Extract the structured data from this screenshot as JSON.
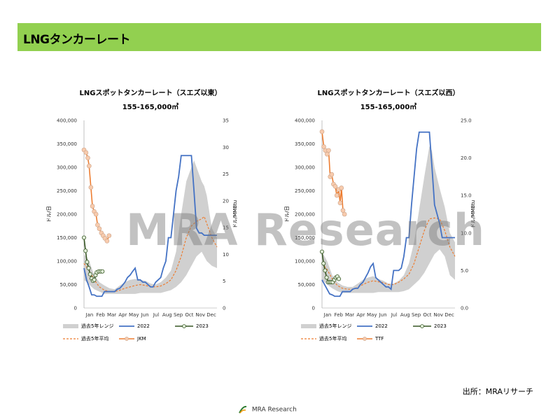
{
  "header": {
    "title": "LNGタンカーレート"
  },
  "watermark": "MRA Research",
  "source": "出所：MRAリサーチ",
  "footer": {
    "logo_text": "MRA Research"
  },
  "colors": {
    "header_bg": "#92d050",
    "range": "#d0d0d0",
    "y2022": "#4472c4",
    "y2023": "#375623",
    "avg": "#ed7d31",
    "price": "#ed7d31"
  },
  "chart_data": [
    {
      "type": "line",
      "title": "LNGスポットタンカーレート（スエズ以東）",
      "subtitle": "155-165,000㎥",
      "ylabel": "ドル/日",
      "y2label": "ドル/MMBtu",
      "ylim": [
        0,
        400000
      ],
      "yticks": [
        "0",
        "50,000",
        "100,000",
        "150,000",
        "200,000",
        "250,000",
        "300,000",
        "350,000",
        "400,000"
      ],
      "y2lim": [
        0,
        35
      ],
      "y2ticks": [
        "0",
        "5",
        "10",
        "15",
        "20",
        "25",
        "30",
        "35"
      ],
      "xlim": [
        0,
        52
      ],
      "month_ticks": [
        "Jan",
        "Feb",
        "Mar",
        "Apr",
        "May",
        "Jun",
        "Jul",
        "Aug",
        "Sep",
        "Oct",
        "Nov",
        "Dec"
      ],
      "legend": [
        "過去5年レンジ",
        "2022",
        "2023",
        "過去5年平均",
        "JKM"
      ],
      "range_min": [
        [
          0,
          60000
        ],
        [
          2,
          50000
        ],
        [
          4,
          40000
        ],
        [
          6,
          35000
        ],
        [
          8,
          30000
        ],
        [
          10,
          30000
        ],
        [
          12,
          30000
        ],
        [
          14,
          30000
        ],
        [
          16,
          30000
        ],
        [
          18,
          30000
        ],
        [
          20,
          30000
        ],
        [
          22,
          32000
        ],
        [
          24,
          32000
        ],
        [
          26,
          32000
        ],
        [
          28,
          32000
        ],
        [
          30,
          32000
        ],
        [
          32,
          35000
        ],
        [
          34,
          38000
        ],
        [
          36,
          45000
        ],
        [
          38,
          55000
        ],
        [
          40,
          70000
        ],
        [
          42,
          90000
        ],
        [
          44,
          110000
        ],
        [
          46,
          120000
        ],
        [
          48,
          100000
        ],
        [
          50,
          90000
        ],
        [
          52,
          85000
        ]
      ],
      "range_max": [
        [
          0,
          115000
        ],
        [
          2,
          100000
        ],
        [
          4,
          70000
        ],
        [
          6,
          55000
        ],
        [
          8,
          48000
        ],
        [
          10,
          42000
        ],
        [
          12,
          40000
        ],
        [
          14,
          48000
        ],
        [
          16,
          55000
        ],
        [
          18,
          60000
        ],
        [
          20,
          62000
        ],
        [
          22,
          60000
        ],
        [
          24,
          58000
        ],
        [
          26,
          52000
        ],
        [
          28,
          50000
        ],
        [
          30,
          55000
        ],
        [
          32,
          65000
        ],
        [
          34,
          80000
        ],
        [
          36,
          120000
        ],
        [
          38,
          200000
        ],
        [
          40,
          270000
        ],
        [
          42,
          300000
        ],
        [
          43,
          315000
        ],
        [
          44,
          300000
        ],
        [
          46,
          270000
        ],
        [
          47,
          260000
        ],
        [
          48,
          240000
        ],
        [
          50,
          170000
        ],
        [
          52,
          150000
        ]
      ],
      "avg": [
        [
          0,
          95000
        ],
        [
          2,
          80000
        ],
        [
          4,
          60000
        ],
        [
          6,
          45000
        ],
        [
          8,
          38000
        ],
        [
          10,
          35000
        ],
        [
          12,
          35000
        ],
        [
          14,
          38000
        ],
        [
          16,
          42000
        ],
        [
          18,
          45000
        ],
        [
          20,
          48000
        ],
        [
          22,
          50000
        ],
        [
          24,
          48000
        ],
        [
          26,
          46000
        ],
        [
          28,
          45000
        ],
        [
          30,
          47000
        ],
        [
          32,
          52000
        ],
        [
          34,
          60000
        ],
        [
          36,
          80000
        ],
        [
          38,
          110000
        ],
        [
          40,
          150000
        ],
        [
          42,
          175000
        ],
        [
          44,
          185000
        ],
        [
          46,
          190000
        ],
        [
          47,
          195000
        ],
        [
          48,
          180000
        ],
        [
          50,
          150000
        ],
        [
          52,
          130000
        ]
      ],
      "s2022": [
        [
          0,
          85000
        ],
        [
          1,
          60000
        ],
        [
          2,
          45000
        ],
        [
          3,
          28000
        ],
        [
          4,
          28000
        ],
        [
          5,
          25000
        ],
        [
          6,
          25000
        ],
        [
          7,
          25000
        ],
        [
          8,
          35000
        ],
        [
          9,
          35000
        ],
        [
          10,
          35000
        ],
        [
          11,
          35000
        ],
        [
          12,
          35000
        ],
        [
          13,
          40000
        ],
        [
          14,
          42000
        ],
        [
          15,
          48000
        ],
        [
          16,
          55000
        ],
        [
          17,
          65000
        ],
        [
          18,
          70000
        ],
        [
          19,
          78000
        ],
        [
          20,
          85000
        ],
        [
          21,
          60000
        ],
        [
          22,
          60000
        ],
        [
          23,
          55000
        ],
        [
          24,
          55000
        ],
        [
          25,
          50000
        ],
        [
          26,
          45000
        ],
        [
          27,
          45000
        ],
        [
          28,
          55000
        ],
        [
          29,
          60000
        ],
        [
          30,
          65000
        ],
        [
          31,
          85000
        ],
        [
          32,
          100000
        ],
        [
          33,
          150000
        ],
        [
          34,
          150000
        ],
        [
          35,
          200000
        ],
        [
          36,
          250000
        ],
        [
          37,
          280000
        ],
        [
          38,
          325000
        ],
        [
          39,
          325000
        ],
        [
          40,
          325000
        ],
        [
          41,
          325000
        ],
        [
          42,
          325000
        ],
        [
          43,
          250000
        ],
        [
          44,
          170000
        ],
        [
          45,
          160000
        ],
        [
          46,
          160000
        ],
        [
          47,
          155000
        ],
        [
          48,
          155000
        ],
        [
          49,
          155000
        ],
        [
          50,
          155000
        ],
        [
          51,
          155000
        ],
        [
          52,
          155000
        ]
      ],
      "s2023": [
        [
          0,
          150000
        ],
        [
          0.6,
          122000
        ],
        [
          1.2,
          98000
        ],
        [
          1.8,
          85000
        ],
        [
          2.4,
          72000
        ],
        [
          3,
          63000
        ],
        [
          3.5,
          58000
        ],
        [
          4,
          60000
        ],
        [
          4.5,
          70000
        ],
        [
          5,
          76000
        ],
        [
          5.8,
          78000
        ],
        [
          6.5,
          78000
        ],
        [
          7.2,
          78000
        ]
      ],
      "price": [
        [
          0,
          29.5
        ],
        [
          0.8,
          29
        ],
        [
          1.5,
          28
        ],
        [
          2,
          26.5
        ],
        [
          2.7,
          22.5
        ],
        [
          3.3,
          19
        ],
        [
          4,
          18
        ],
        [
          4.7,
          17.5
        ],
        [
          5.3,
          15.5
        ],
        [
          6,
          14.8
        ],
        [
          6.8,
          14
        ],
        [
          7.5,
          13.5
        ],
        [
          8.2,
          13
        ],
        [
          9,
          12.5
        ],
        [
          9.8,
          13.5
        ]
      ]
    },
    {
      "type": "line",
      "title": "LNGスポットタンカーレート（スエズ以西）",
      "subtitle": "155-165,000㎥",
      "ylabel": "ドル/日",
      "y2label": "ドル/MMBtu",
      "ylim": [
        0,
        400000
      ],
      "yticks": [
        "0",
        "50,000",
        "100,000",
        "150,000",
        "200,000",
        "250,000",
        "300,000",
        "350,000",
        "400,000"
      ],
      "y2lim": [
        0,
        25
      ],
      "y2ticks": [
        "0.0",
        "5.0",
        "10.0",
        "15.0",
        "20.0",
        "25.0"
      ],
      "xlim": [
        0,
        52
      ],
      "month_ticks": [
        "Jan",
        "Feb",
        "Mar",
        "Apr",
        "May",
        "Jun",
        "Jul",
        "Aug",
        "Sep",
        "Oct",
        "Nov",
        "Dec"
      ],
      "legend": [
        "過去5年レンジ",
        "2022",
        "2023",
        "過去5年平均",
        "TTF"
      ],
      "range_min": [
        [
          0,
          60000
        ],
        [
          2,
          50000
        ],
        [
          4,
          42000
        ],
        [
          6,
          36000
        ],
        [
          8,
          32000
        ],
        [
          10,
          32000
        ],
        [
          12,
          32000
        ],
        [
          14,
          32000
        ],
        [
          16,
          32000
        ],
        [
          18,
          32000
        ],
        [
          20,
          32000
        ],
        [
          22,
          34000
        ],
        [
          24,
          34000
        ],
        [
          26,
          34000
        ],
        [
          28,
          34000
        ],
        [
          30,
          34000
        ],
        [
          32,
          36000
        ],
        [
          34,
          40000
        ],
        [
          36,
          50000
        ],
        [
          38,
          60000
        ],
        [
          40,
          75000
        ],
        [
          42,
          95000
        ],
        [
          44,
          115000
        ],
        [
          46,
          125000
        ],
        [
          48,
          110000
        ],
        [
          50,
          70000
        ],
        [
          52,
          60000
        ]
      ],
      "range_max": [
        [
          0,
          120000
        ],
        [
          2,
          100000
        ],
        [
          4,
          70000
        ],
        [
          6,
          55000
        ],
        [
          8,
          48000
        ],
        [
          10,
          45000
        ],
        [
          12,
          45000
        ],
        [
          14,
          52000
        ],
        [
          16,
          60000
        ],
        [
          18,
          65000
        ],
        [
          20,
          68000
        ],
        [
          22,
          62000
        ],
        [
          24,
          58000
        ],
        [
          26,
          52000
        ],
        [
          28,
          52000
        ],
        [
          30,
          58000
        ],
        [
          32,
          70000
        ],
        [
          34,
          95000
        ],
        [
          36,
          140000
        ],
        [
          38,
          210000
        ],
        [
          40,
          280000
        ],
        [
          42,
          345000
        ],
        [
          43,
          335000
        ],
        [
          44,
          300000
        ],
        [
          46,
          255000
        ],
        [
          48,
          215000
        ],
        [
          50,
          160000
        ],
        [
          52,
          140000
        ]
      ],
      "avg": [
        [
          0,
          95000
        ],
        [
          2,
          82000
        ],
        [
          4,
          62000
        ],
        [
          6,
          48000
        ],
        [
          8,
          42000
        ],
        [
          10,
          40000
        ],
        [
          12,
          40000
        ],
        [
          14,
          44000
        ],
        [
          16,
          50000
        ],
        [
          18,
          55000
        ],
        [
          20,
          58000
        ],
        [
          22,
          56000
        ],
        [
          24,
          54000
        ],
        [
          26,
          50000
        ],
        [
          28,
          50000
        ],
        [
          30,
          55000
        ],
        [
          32,
          62000
        ],
        [
          34,
          72000
        ],
        [
          36,
          95000
        ],
        [
          38,
          130000
        ],
        [
          40,
          165000
        ],
        [
          42,
          190000
        ],
        [
          44,
          192000
        ],
        [
          46,
          190000
        ],
        [
          48,
          165000
        ],
        [
          50,
          130000
        ],
        [
          52,
          110000
        ]
      ],
      "s2022": [
        [
          0,
          60000
        ],
        [
          1,
          50000
        ],
        [
          2,
          40000
        ],
        [
          3,
          30000
        ],
        [
          4,
          28000
        ],
        [
          5,
          25000
        ],
        [
          6,
          25000
        ],
        [
          7,
          25000
        ],
        [
          8,
          35000
        ],
        [
          9,
          35000
        ],
        [
          10,
          35000
        ],
        [
          11,
          35000
        ],
        [
          12,
          40000
        ],
        [
          13,
          42000
        ],
        [
          14,
          42000
        ],
        [
          15,
          50000
        ],
        [
          16,
          55000
        ],
        [
          17,
          65000
        ],
        [
          18,
          75000
        ],
        [
          19,
          88000
        ],
        [
          20,
          95000
        ],
        [
          21,
          65000
        ],
        [
          22,
          60000
        ],
        [
          23,
          55000
        ],
        [
          24,
          50000
        ],
        [
          25,
          45000
        ],
        [
          26,
          45000
        ],
        [
          27,
          40000
        ],
        [
          28,
          80000
        ],
        [
          29,
          80000
        ],
        [
          30,
          80000
        ],
        [
          31,
          85000
        ],
        [
          32,
          110000
        ],
        [
          33,
          150000
        ],
        [
          34,
          150000
        ],
        [
          35,
          220000
        ],
        [
          36,
          280000
        ],
        [
          37,
          340000
        ],
        [
          38,
          375000
        ],
        [
          39,
          375000
        ],
        [
          40,
          375000
        ],
        [
          41,
          375000
        ],
        [
          42,
          375000
        ],
        [
          43,
          300000
        ],
        [
          44,
          220000
        ],
        [
          45,
          200000
        ],
        [
          46,
          180000
        ],
        [
          47,
          150000
        ],
        [
          48,
          150000
        ],
        [
          49,
          150000
        ],
        [
          50,
          150000
        ],
        [
          51,
          150000
        ],
        [
          52,
          150000
        ]
      ],
      "s2023": [
        [
          0,
          120000
        ],
        [
          0.6,
          95000
        ],
        [
          1.2,
          80000
        ],
        [
          1.8,
          65000
        ],
        [
          2.4,
          55000
        ],
        [
          3,
          55000
        ],
        [
          3.6,
          55000
        ],
        [
          4.2,
          55000
        ],
        [
          4.8,
          60000
        ],
        [
          5.4,
          65000
        ],
        [
          6,
          67000
        ],
        [
          6.6,
          62000
        ]
      ],
      "price": [
        [
          0,
          23.5
        ],
        [
          0.7,
          21.5
        ],
        [
          1.3,
          21
        ],
        [
          2,
          20.5
        ],
        [
          2.6,
          21
        ],
        [
          3.2,
          17.5
        ],
        [
          3.8,
          17.8
        ],
        [
          4.5,
          16.5
        ],
        [
          5.2,
          16.2
        ],
        [
          5.8,
          15
        ],
        [
          6.5,
          15.8
        ],
        [
          7.1,
          14
        ],
        [
          7.6,
          16
        ],
        [
          8.2,
          13
        ],
        [
          8.8,
          12.5
        ]
      ]
    }
  ]
}
